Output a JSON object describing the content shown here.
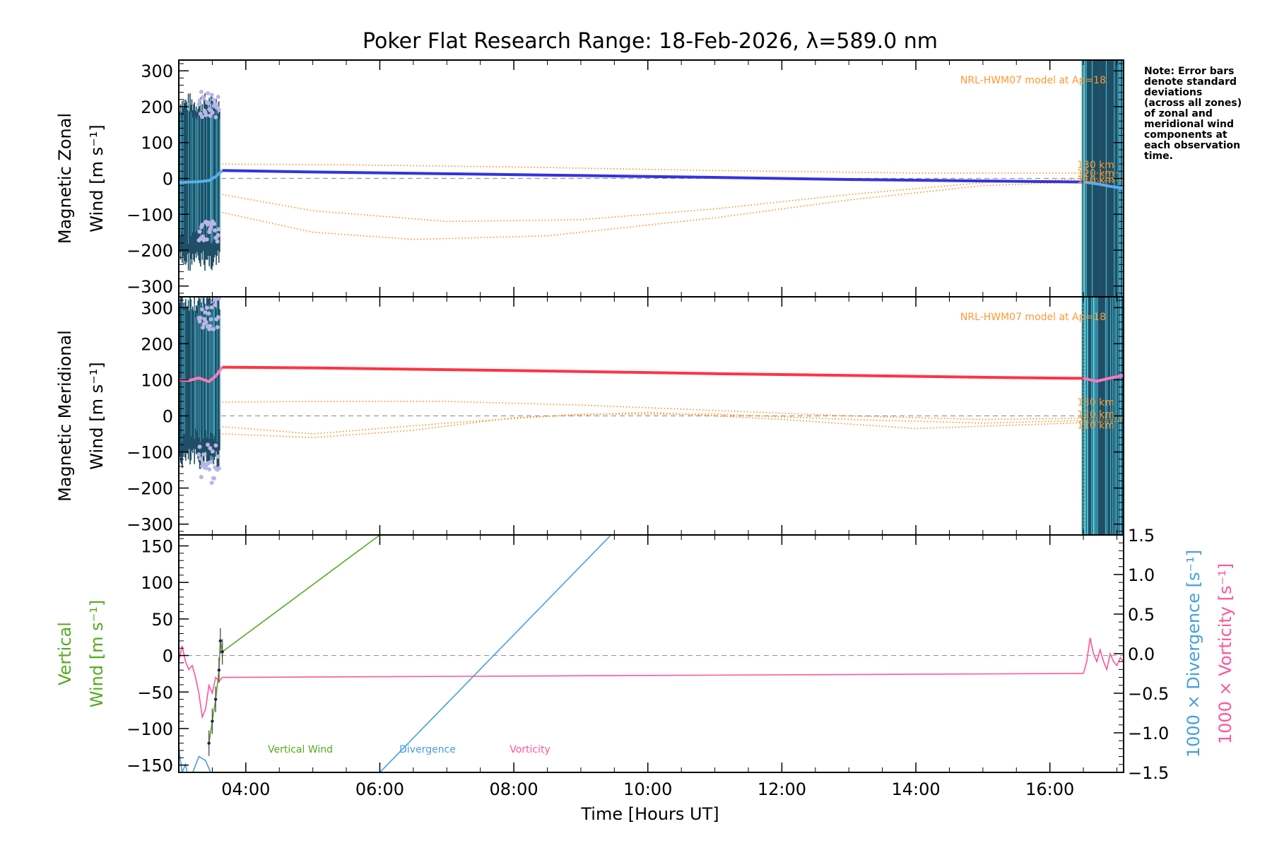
{
  "title": "Poker Flat Research Range: 18-Feb-2026, λ=589.0 nm",
  "colors": {
    "zonal": "#3333dd",
    "zonal_sky": "#5aaee8",
    "meridional": "#ff3344",
    "meridional_pink": "#ff77bb",
    "model": "#ff8c1a",
    "model_label": "#ff9933",
    "lavender": "#b9b5e6",
    "errbar": "#1f4f66",
    "vertical": "#55aa22",
    "divergence": "#44a0dd",
    "vorticity": "#ff5599",
    "zero": "#999999"
  },
  "x_axis": {
    "label": "Time [Hours UT]",
    "range": [
      3.0,
      17.1
    ],
    "ticks": [
      4,
      6,
      8,
      10,
      12,
      14,
      16
    ],
    "tick_labels": [
      "04:00",
      "06:00",
      "08:00",
      "10:00",
      "12:00",
      "14:00",
      "16:00"
    ]
  },
  "note": [
    "Note: Error bars",
    "denote standard",
    "deviations",
    "(across all zones)",
    "of zonal and",
    "meridional wind",
    "components at",
    "each observation",
    "time."
  ],
  "chart_data": [
    {
      "type": "line",
      "panel": "zonal",
      "ylabel_line1": "Magnetic Zonal",
      "ylabel_line2": "Wind [m s⁻¹]",
      "ylim": [
        -330,
        330
      ],
      "yticks": [
        -300,
        -200,
        -100,
        0,
        100,
        200,
        300
      ],
      "ytick_labels": [
        "−300",
        "−200",
        "−100",
        "0",
        "100",
        "200",
        "300"
      ],
      "model_label": "NRL-HWM07 model at Ap=18",
      "model_altitudes": [
        "130 km",
        "120 km",
        "110 km"
      ],
      "series": [
        {
          "name": "Zonal wind (early)",
          "x": [
            3.0,
            3.15,
            3.3,
            3.45,
            3.55,
            3.65
          ],
          "y": [
            -12,
            -10,
            -9,
            -6,
            5,
            22
          ]
        },
        {
          "name": "Zonal wind (interpolated)",
          "x": [
            3.65,
            5,
            7,
            9,
            11,
            13,
            15,
            16.5
          ],
          "y": [
            22,
            18,
            13,
            8,
            3,
            -3,
            -7,
            -10
          ]
        },
        {
          "name": "Zonal wind (late)",
          "x": [
            16.5,
            16.7,
            16.9,
            17.1
          ],
          "y": [
            -10,
            -15,
            -22,
            -28
          ]
        },
        {
          "name": "Model 130 km",
          "x": [
            3.65,
            5.5,
            8,
            11,
            14,
            17.1
          ],
          "y": [
            40,
            38,
            32,
            22,
            15,
            15
          ]
        },
        {
          "name": "Model 120 km",
          "x": [
            3.65,
            5,
            7,
            9,
            11,
            13,
            15,
            17.1
          ],
          "y": [
            -45,
            -90,
            -120,
            -115,
            -85,
            -45,
            -12,
            2
          ]
        },
        {
          "name": "Model 110 km",
          "x": [
            3.65,
            5,
            6.5,
            8.5,
            11,
            13,
            15,
            17.1
          ],
          "y": [
            -95,
            -150,
            -170,
            -160,
            -110,
            -60,
            -20,
            -5
          ]
        }
      ]
    },
    {
      "type": "line",
      "panel": "meridional",
      "ylabel_line1": "Magnetic Meridional",
      "ylabel_line2": "Wind [m s⁻¹]",
      "ylim": [
        -330,
        330
      ],
      "yticks": [
        -300,
        -200,
        -100,
        0,
        100,
        200,
        300
      ],
      "ytick_labels": [
        "−300",
        "−200",
        "−100",
        "0",
        "100",
        "200",
        "300"
      ],
      "model_label": "NRL-HWM07 model at Ap=18",
      "model_altitudes": [
        "130 km",
        "120 km",
        "110 km"
      ],
      "series": [
        {
          "name": "Meridional wind (early)",
          "x": [
            3.0,
            3.15,
            3.3,
            3.45,
            3.55,
            3.65
          ],
          "y": [
            100,
            98,
            105,
            95,
            110,
            135
          ]
        },
        {
          "name": "Meridional wind (interpolated)",
          "x": [
            3.65,
            5,
            7,
            9,
            11,
            13,
            15,
            16.5
          ],
          "y": [
            135,
            133,
            128,
            123,
            117,
            112,
            107,
            104
          ]
        },
        {
          "name": "Meridional wind (late)",
          "x": [
            16.5,
            16.7,
            16.9,
            17.1
          ],
          "y": [
            104,
            96,
            105,
            112
          ]
        },
        {
          "name": "Model 130 km",
          "x": [
            3.65,
            5,
            7,
            9,
            11,
            13,
            15,
            17.1
          ],
          "y": [
            38,
            40,
            40,
            30,
            15,
            0,
            -10,
            -5
          ]
        },
        {
          "name": "Model 120 km",
          "x": [
            3.65,
            5,
            7,
            9,
            11,
            13,
            15,
            17.1
          ],
          "y": [
            -30,
            -50,
            -20,
            5,
            5,
            -10,
            -20,
            -10
          ]
        },
        {
          "name": "Model 110 km",
          "x": [
            3.65,
            5,
            6.5,
            8,
            10,
            12,
            14,
            17.1
          ],
          "y": [
            -50,
            -60,
            -40,
            -5,
            10,
            -10,
            -35,
            -15
          ]
        }
      ]
    },
    {
      "type": "line",
      "panel": "vertical",
      "ylabel_line1": "Vertical",
      "ylabel_line2": "Wind [m s⁻¹]",
      "ylim": [
        -160,
        165
      ],
      "yticks": [
        -150,
        -100,
        -50,
        0,
        50,
        100,
        150
      ],
      "ytick_labels": [
        "−150",
        "−100",
        "−50",
        "0",
        "50",
        "100",
        "150"
      ],
      "y2lim": [
        -1.5,
        1.5
      ],
      "y2ticks": [
        -1.5,
        -1.0,
        -0.5,
        0.0,
        0.5,
        1.0,
        1.5
      ],
      "y2tick_labels": [
        "−1.5",
        "−1.0",
        "−0.5",
        "0.0",
        "0.5",
        "1.0",
        "1.5"
      ],
      "y2label_divergence": "1000 × Divergence [s⁻¹]",
      "y2label_vorticity": "1000 × Vorticity [s⁻¹]",
      "legend": [
        "Vertical Wind",
        "Divergence",
        "Vorticity"
      ],
      "series": [
        {
          "name": "Vertical Wind",
          "axis": "left",
          "x": [
            3.45,
            3.5,
            3.55,
            3.6,
            3.62,
            3.65,
            6.0
          ],
          "y": [
            -120,
            -90,
            -60,
            -20,
            20,
            5,
            165
          ]
        },
        {
          "name": "Divergence",
          "axis": "right",
          "x": [
            3.0,
            3.05,
            3.1,
            3.15,
            3.2,
            3.3,
            3.4,
            3.5,
            6.0,
            9.45
          ],
          "y": [
            -1.2,
            -1.5,
            -1.4,
            -1.6,
            -1.52,
            -1.3,
            -1.35,
            -1.55,
            -1.5,
            1.5
          ]
        },
        {
          "name": "Vorticity",
          "axis": "right",
          "x": [
            3.0,
            3.05,
            3.1,
            3.15,
            3.2,
            3.25,
            3.3,
            3.35,
            3.4,
            3.45,
            3.5,
            3.55,
            3.6,
            3.65,
            16.5,
            16.55,
            16.6,
            16.65,
            16.7,
            16.75,
            16.8,
            16.85,
            16.9,
            16.95,
            17.0,
            17.05,
            17.1
          ],
          "y": [
            -0.1,
            0.1,
            -0.1,
            -0.2,
            -0.15,
            -0.3,
            -0.5,
            -0.8,
            -0.7,
            -0.4,
            -0.5,
            -0.3,
            -0.35,
            -0.3,
            -0.25,
            -0.1,
            0.2,
            0.0,
            -0.1,
            0.05,
            -0.1,
            -0.2,
            0.0,
            -0.1,
            -0.15,
            -0.05,
            -0.1
          ]
        }
      ]
    }
  ]
}
